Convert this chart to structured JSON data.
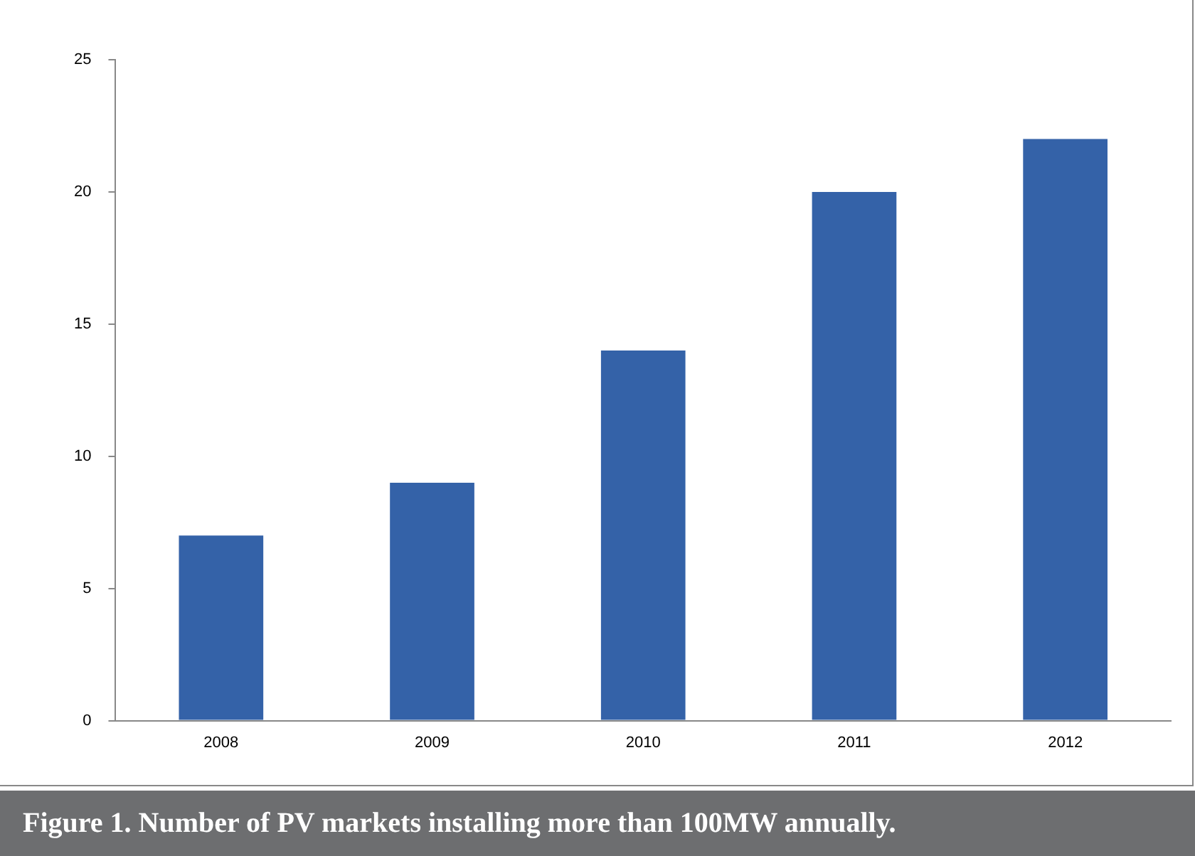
{
  "chart_data": {
    "type": "bar",
    "title": "Figure 1. Number of PV markets installing more than 100MW annually.",
    "categories": [
      "2008",
      "2009",
      "2010",
      "2011",
      "2012"
    ],
    "values": [
      7,
      9,
      14,
      20,
      22
    ],
    "color": "#3462a8",
    "ylim": [
      0,
      25
    ],
    "yticks": [
      0,
      5,
      10,
      15,
      20,
      25
    ],
    "grid": false,
    "legend": false
  }
}
